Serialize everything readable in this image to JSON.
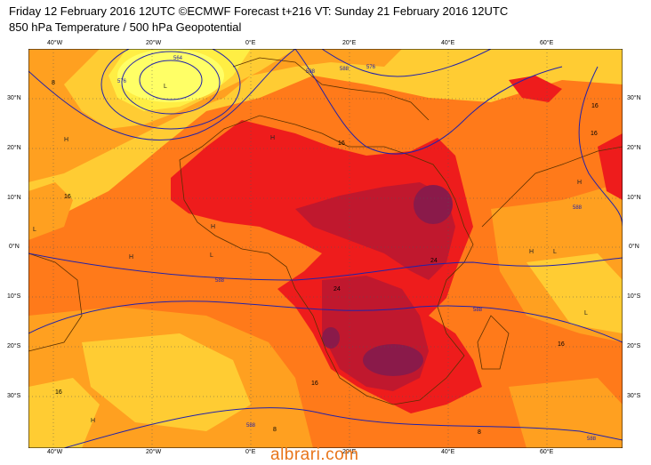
{
  "header": {
    "line1": "Friday 12 February 2016 12UTC ©ECMWF Forecast t+216 VT: Sunday 21 February 2016 12UTC",
    "line2": "850 hPa Temperature / 500 hPa Geopotential"
  },
  "axes": {
    "top_lon": [
      "40°W",
      "20°W",
      "0°E",
      "20°E",
      "40°E",
      "60°E"
    ],
    "bottom_lon": [
      "40°W",
      "20°W",
      "0°E",
      "20°E",
      "40°E",
      "60°E"
    ],
    "left_lat": [
      "30°N",
      "20°N",
      "10°N",
      "0°N",
      "10°S",
      "20°S",
      "30°S"
    ],
    "right_lat": [
      "30°N",
      "20°N",
      "10°N",
      "0°N",
      "10°S",
      "20°S",
      "30°S"
    ]
  },
  "contour_labels": {
    "geopotential": [
      "564",
      "576",
      "588",
      "588",
      "576",
      "588",
      "588",
      "588",
      "588",
      "588"
    ],
    "temperature": [
      "8",
      "16",
      "16",
      "16",
      "16",
      "24",
      "24",
      "16",
      "16",
      "8",
      "8",
      "16"
    ]
  },
  "pressure_marks": [
    "L",
    "H",
    "H",
    "H",
    "H",
    "L",
    "H",
    "L",
    "H",
    "L",
    "H",
    "L"
  ],
  "colors": {
    "cold": "#ffff66",
    "cool": "#ffcc33",
    "mild": "#ffa020",
    "warm": "#ff7a1a",
    "hot": "#ee1c1c",
    "very_hot": "#c0182e",
    "extreme": "#8a1a4a",
    "coast": "#5a3000",
    "geopotential_line": "#2222aa"
  },
  "watermark": "albrari.com"
}
